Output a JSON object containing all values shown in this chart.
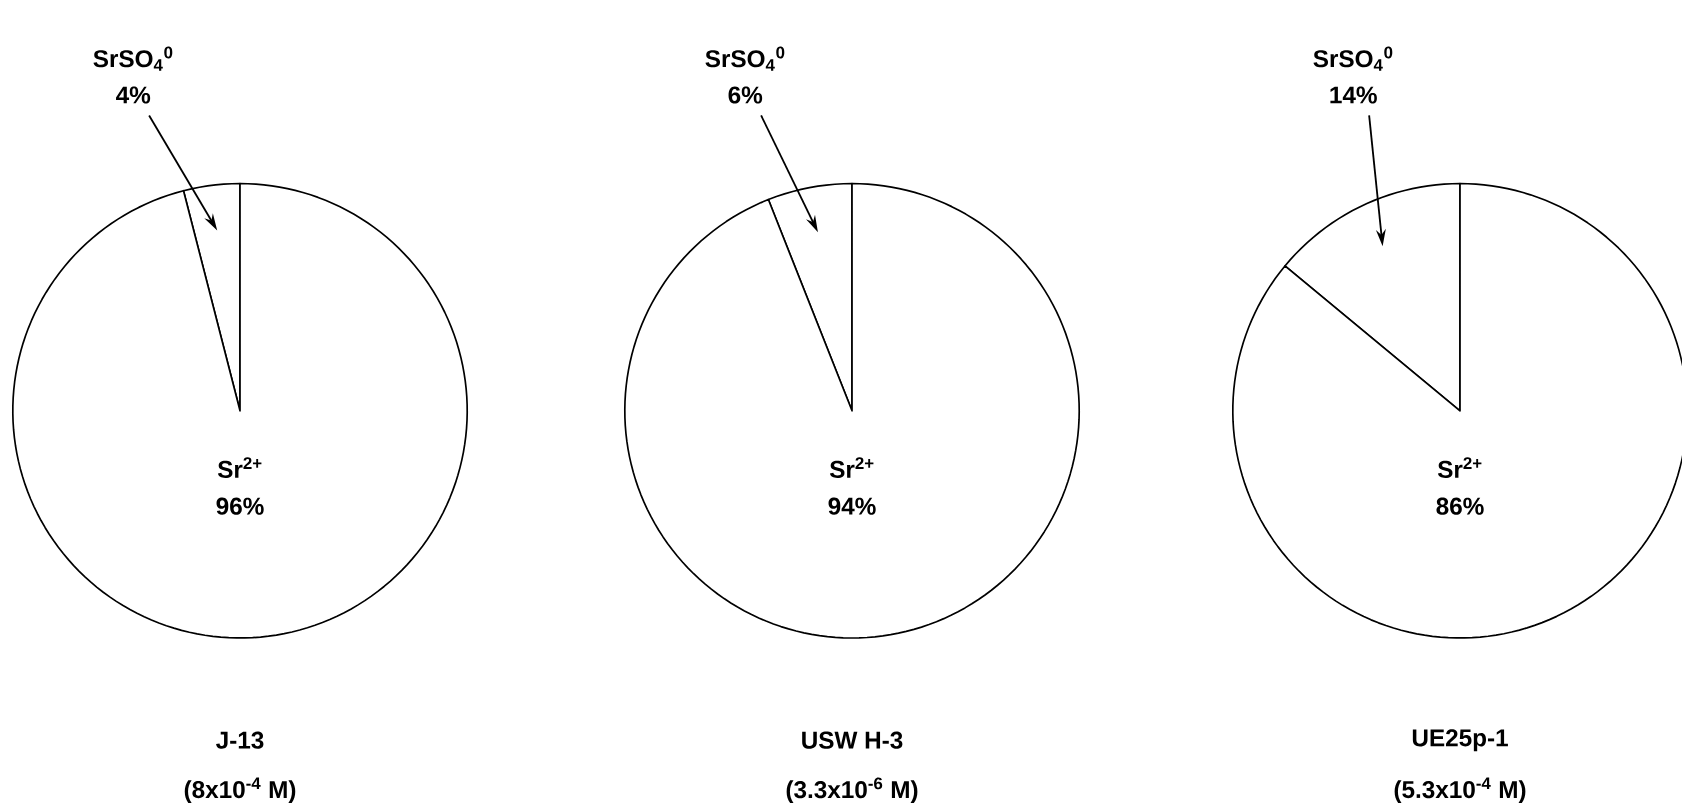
{
  "chart_data": [
    {
      "type": "pie",
      "title": "J-13",
      "subtitle": "(8x10$^{-4}$ M)",
      "categories": [
        "SrSO$_{4}$$^{0}$",
        "Sr$^{2+}$"
      ],
      "values": [
        4,
        96
      ],
      "value_labels": [
        "4%",
        "96%"
      ],
      "colors": [
        "#ffffff",
        "#ffffff"
      ]
    },
    {
      "type": "pie",
      "title": "USW H-3",
      "subtitle": "(3.3x10$^{-6}$ M)",
      "categories": [
        "SrSO$_{4}$$^{0}$",
        "Sr$^{2+}$"
      ],
      "values": [
        6,
        94
      ],
      "value_labels": [
        "6%",
        "94%"
      ],
      "colors": [
        "#ffffff",
        "#ffffff"
      ]
    },
    {
      "type": "pie",
      "title": "UE25p-1",
      "subtitle": "(5.3x10$^{-4}$ M)",
      "categories": [
        "SrSO$_{4}$$^{0}$",
        "Sr$^{2+}$"
      ],
      "values": [
        14,
        86
      ],
      "value_labels": [
        "14%",
        "86%"
      ],
      "colors": [
        "#ffffff",
        "#ffffff"
      ]
    }
  ]
}
